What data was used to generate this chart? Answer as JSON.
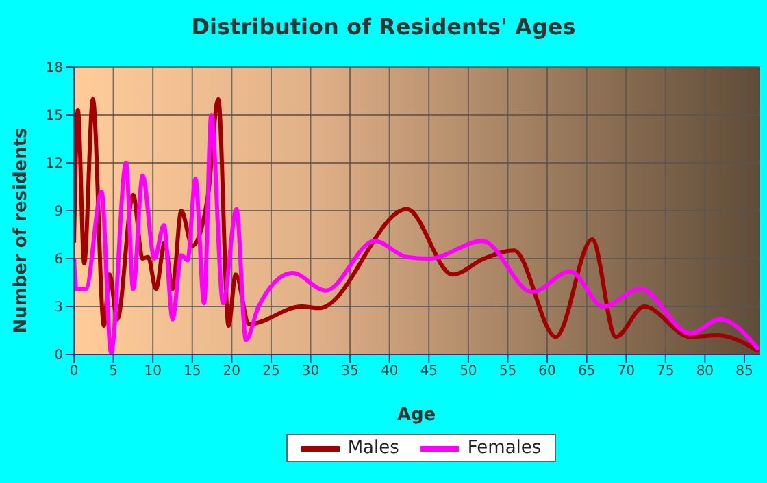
{
  "chart_data": {
    "type": "line",
    "title": "Distribution of Residents' Ages",
    "xlabel": "Age",
    "ylabel": "Number of residents",
    "xlim": [
      0,
      87
    ],
    "xticks": [
      0,
      5,
      10,
      15,
      20,
      25,
      30,
      35,
      40,
      45,
      50,
      55,
      60,
      65,
      70,
      75,
      80,
      85
    ],
    "ylim": [
      0,
      18
    ],
    "yticks": [
      0,
      3,
      6,
      9,
      12,
      15,
      18
    ],
    "grid": true,
    "legend": "bottom",
    "marker": "none",
    "line_style": "solid",
    "series": [
      {
        "name": "Males",
        "color": "#a00000",
        "x": [
          0,
          0.5,
          1.3,
          2.4,
          3.8,
          4.5,
          5.5,
          7.5,
          8.7,
          9.4,
          10.4,
          11.5,
          12.5,
          13.6,
          15,
          17,
          18.3,
          19.6,
          20.5,
          22.2,
          28.9,
          31.1,
          42.2,
          48,
          52,
          55.8,
          61.1,
          65.7,
          68.7,
          72.3,
          78.1,
          81.6,
          86.8
        ],
        "values": [
          7,
          15.3,
          5.7,
          16,
          1.8,
          5,
          2.2,
          10,
          6,
          6.1,
          4.1,
          7,
          4.1,
          9,
          6.8,
          10,
          16,
          1.8,
          5,
          1.9,
          3,
          2.9,
          9.1,
          5,
          6,
          6.5,
          1.1,
          7.2,
          1.1,
          3,
          1.1,
          1.2,
          0.2
        ]
      },
      {
        "name": "Females",
        "color": "#ff00ff",
        "x": [
          0,
          0.3,
          1.5,
          3.5,
          4.7,
          6.6,
          7.5,
          8.7,
          10.2,
          11.4,
          12.5,
          13.6,
          14.4,
          15.4,
          16.5,
          17.4,
          18.9,
          20.6,
          21.8,
          23.4,
          27.7,
          31.9,
          38.1,
          42.2,
          45,
          51.8,
          58.1,
          62.9,
          67.1,
          71.8,
          78.1,
          81.9,
          86.8
        ],
        "values": [
          6,
          4.1,
          4.1,
          10.2,
          0.1,
          12,
          4.1,
          11.2,
          6,
          8.1,
          2.2,
          6.2,
          5.9,
          11,
          3.2,
          15,
          3.2,
          9.1,
          0.9,
          3,
          5.1,
          4,
          7.1,
          6.1,
          6,
          7.1,
          3.9,
          5.2,
          3,
          4.1,
          1.3,
          2.2,
          0.3
        ]
      }
    ]
  }
}
